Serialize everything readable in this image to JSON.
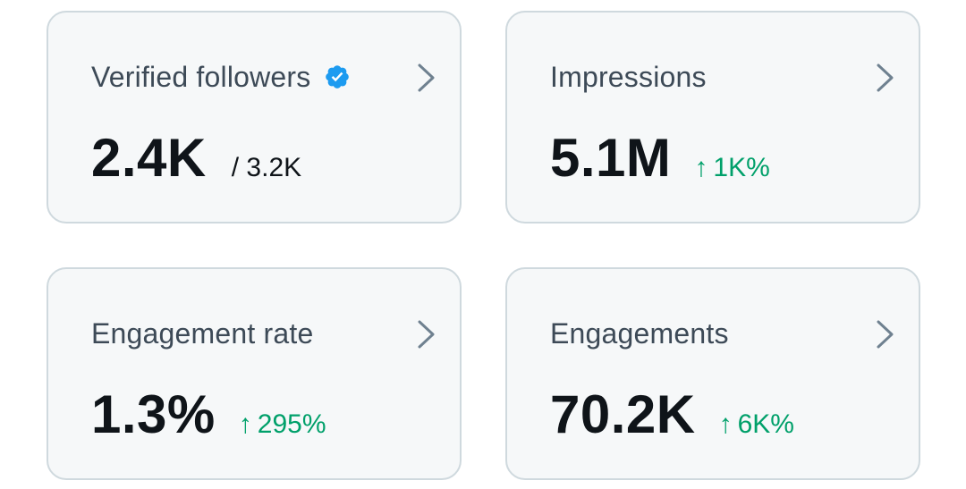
{
  "cards": [
    {
      "title": "Verified followers",
      "value": "2.4K",
      "secondary": "/ 3.2K",
      "verified_badge": true
    },
    {
      "title": "Impressions",
      "value": "5.1M",
      "delta": "1K%"
    },
    {
      "title": "Engagement rate",
      "value": "1.3%",
      "delta": "295%"
    },
    {
      "title": "Engagements",
      "value": "70.2K",
      "delta": "6K%"
    }
  ],
  "icons": {
    "verified": "verified-badge-icon",
    "chevron": "chevron-right-icon",
    "delta_arrow": "up-arrow-icon"
  },
  "colors": {
    "card_background": "#f6f8f9",
    "card_border": "#cfd9de",
    "title_text": "#3d4a57",
    "value_text": "#0f1419",
    "positive_delta": "#00a06a",
    "verified_blue": "#1d9bf0",
    "chevron": "#6f8190"
  }
}
